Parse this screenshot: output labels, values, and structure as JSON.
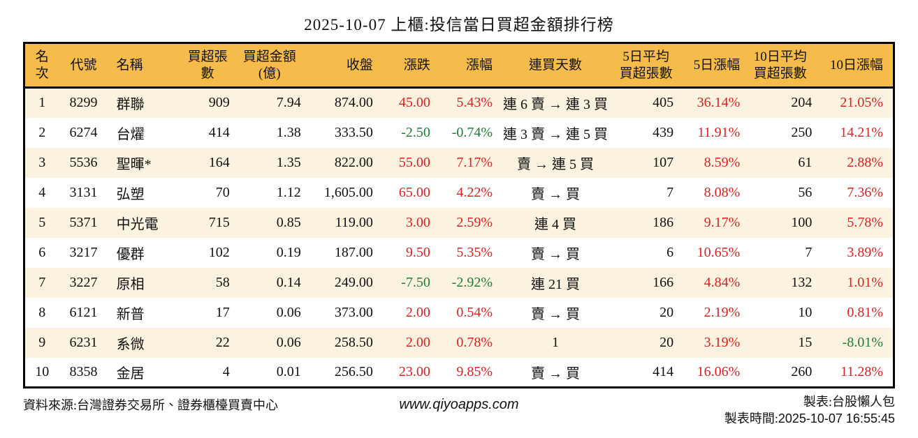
{
  "title": "2025-10-07 上櫃:投信當日買超金額排行榜",
  "colors": {
    "header_bg": "#F6BC4B",
    "stripe_bg": "#FBF2DF",
    "up": "#DE1F1F",
    "down": "#1E7E34",
    "border": "#000000"
  },
  "table": {
    "columns": [
      {
        "key": "rank",
        "label": "名次",
        "align": "center"
      },
      {
        "key": "code",
        "label": "代號",
        "align": "center"
      },
      {
        "key": "name",
        "label": "名稱",
        "align": "left"
      },
      {
        "key": "lots",
        "label": "買超張數",
        "align": "right"
      },
      {
        "key": "amount",
        "label": "買超金額\n(億)",
        "align": "right"
      },
      {
        "key": "close",
        "label": "收盤",
        "align": "right"
      },
      {
        "key": "change",
        "label": "漲跌",
        "align": "right",
        "signed": true
      },
      {
        "key": "change_pct",
        "label": "漲幅",
        "align": "right",
        "signed": true
      },
      {
        "key": "streak",
        "label": "連買天數",
        "align": "center"
      },
      {
        "key": "avg5",
        "label": "5日平均\n買超張數",
        "align": "right"
      },
      {
        "key": "pct5",
        "label": "5日漲幅",
        "align": "right",
        "signed": true
      },
      {
        "key": "avg10",
        "label": "10日平均\n買超張數",
        "align": "right"
      },
      {
        "key": "pct10",
        "label": "10日漲幅",
        "align": "right",
        "signed": true
      }
    ],
    "rows": [
      [
        "1",
        "8299",
        "群聯",
        "909",
        "7.94",
        "874.00",
        "45.00",
        "5.43%",
        "連 6 賣 → 連 3 買",
        "405",
        "36.14%",
        "204",
        "21.05%"
      ],
      [
        "2",
        "6274",
        "台燿",
        "414",
        "1.38",
        "333.50",
        "-2.50",
        "-0.74%",
        "連 3 賣 → 連 5 買",
        "439",
        "11.91%",
        "250",
        "14.21%"
      ],
      [
        "3",
        "5536",
        "聖暉*",
        "164",
        "1.35",
        "822.00",
        "55.00",
        "7.17%",
        "賣 → 連 5 買",
        "107",
        "8.59%",
        "61",
        "2.88%"
      ],
      [
        "4",
        "3131",
        "弘塑",
        "70",
        "1.12",
        "1,605.00",
        "65.00",
        "4.22%",
        "賣 → 買",
        "7",
        "8.08%",
        "56",
        "7.36%"
      ],
      [
        "5",
        "5371",
        "中光電",
        "715",
        "0.85",
        "119.00",
        "3.00",
        "2.59%",
        "連 4 買",
        "186",
        "9.17%",
        "100",
        "5.78%"
      ],
      [
        "6",
        "3217",
        "優群",
        "102",
        "0.19",
        "187.00",
        "9.50",
        "5.35%",
        "賣 → 買",
        "6",
        "10.65%",
        "7",
        "3.89%"
      ],
      [
        "7",
        "3227",
        "原相",
        "58",
        "0.14",
        "249.00",
        "-7.50",
        "-2.92%",
        "連 21 買",
        "166",
        "4.84%",
        "132",
        "1.01%"
      ],
      [
        "8",
        "6121",
        "新普",
        "17",
        "0.06",
        "373.00",
        "2.00",
        "0.54%",
        "賣 → 買",
        "20",
        "2.19%",
        "10",
        "0.81%"
      ],
      [
        "9",
        "6231",
        "系微",
        "22",
        "0.06",
        "258.50",
        "2.00",
        "0.78%",
        "1",
        "20",
        "3.19%",
        "15",
        "-8.01%"
      ],
      [
        "10",
        "8358",
        "金居",
        "4",
        "0.01",
        "256.50",
        "23.00",
        "9.85%",
        "賣 → 買",
        "414",
        "16.06%",
        "260",
        "11.28%"
      ]
    ]
  },
  "footer": {
    "source": "資料來源:台灣證券交易所、證券櫃檯買賣中心",
    "website": "www.qiyoapps.com",
    "maker": "製表:台股懶人包",
    "time_label": "製表時間:",
    "time": "2025-10-07 16:55:45"
  }
}
